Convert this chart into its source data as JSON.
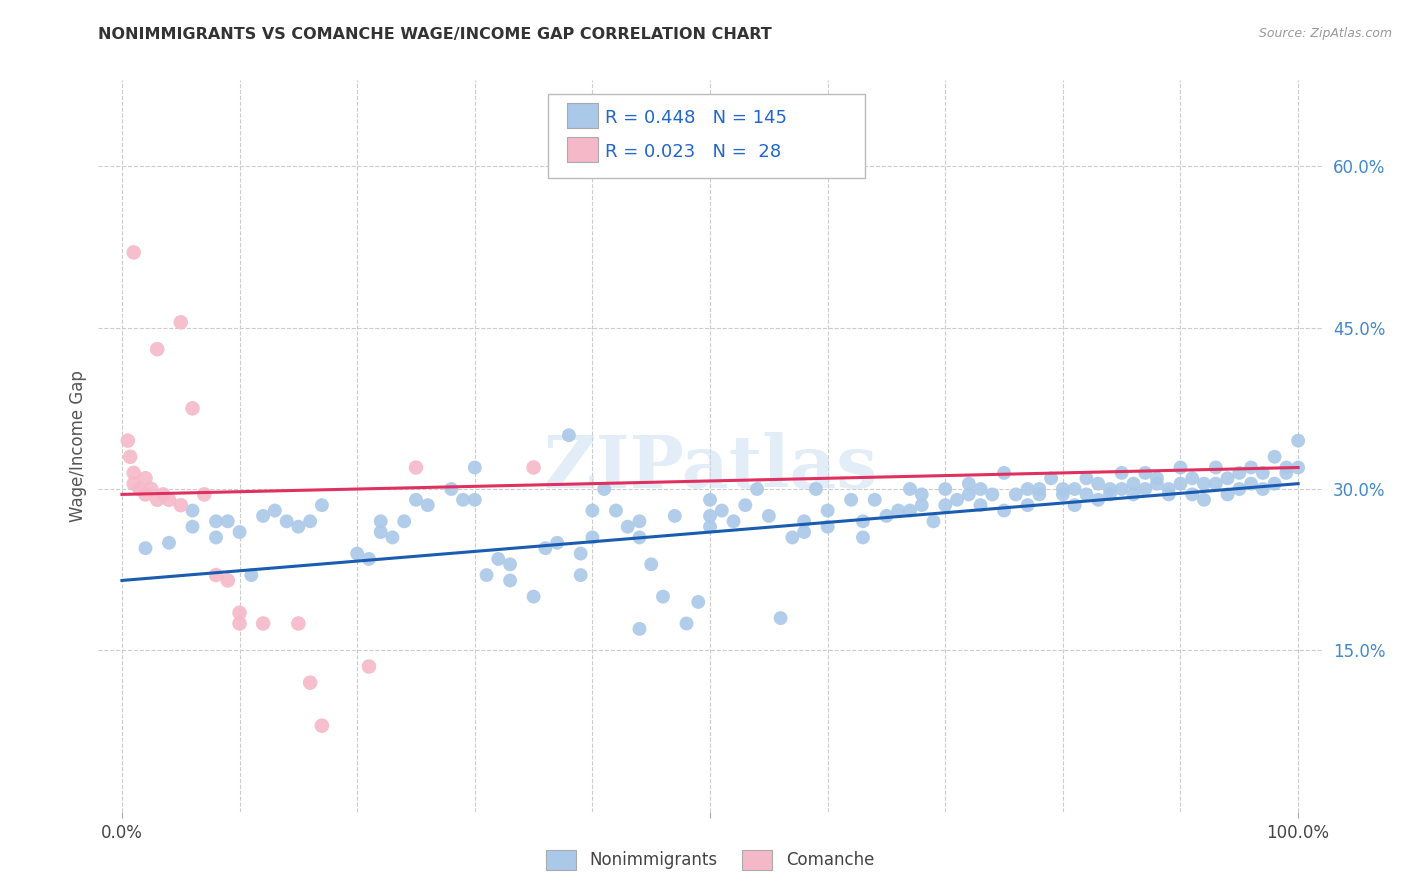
{
  "title": "NONIMMIGRANTS VS COMANCHE WAGE/INCOME GAP CORRELATION CHART",
  "source": "Source: ZipAtlas.com",
  "ylabel": "Wage/Income Gap",
  "xlim": [
    -0.02,
    1.02
  ],
  "ylim": [
    0.0,
    0.68
  ],
  "yticks": [
    0.15,
    0.3,
    0.45,
    0.6
  ],
  "yticklabels": [
    "15.0%",
    "30.0%",
    "45.0%",
    "60.0%"
  ],
  "blue_R": 0.448,
  "blue_N": 145,
  "pink_R": 0.023,
  "pink_N": 28,
  "blue_color": "#aac8e8",
  "pink_color": "#f5b8c8",
  "blue_line_color": "#1a5cb0",
  "pink_line_color": "#e03060",
  "background_color": "#ffffff",
  "grid_color": "#cccccc",
  "watermark": "ZIPatlas",
  "blue_points": [
    [
      0.02,
      0.245
    ],
    [
      0.04,
      0.25
    ],
    [
      0.06,
      0.28
    ],
    [
      0.06,
      0.265
    ],
    [
      0.08,
      0.27
    ],
    [
      0.08,
      0.255
    ],
    [
      0.09,
      0.27
    ],
    [
      0.1,
      0.26
    ],
    [
      0.11,
      0.22
    ],
    [
      0.12,
      0.275
    ],
    [
      0.13,
      0.28
    ],
    [
      0.14,
      0.27
    ],
    [
      0.15,
      0.265
    ],
    [
      0.16,
      0.27
    ],
    [
      0.17,
      0.285
    ],
    [
      0.2,
      0.24
    ],
    [
      0.21,
      0.235
    ],
    [
      0.22,
      0.27
    ],
    [
      0.22,
      0.26
    ],
    [
      0.23,
      0.255
    ],
    [
      0.24,
      0.27
    ],
    [
      0.25,
      0.29
    ],
    [
      0.26,
      0.285
    ],
    [
      0.28,
      0.3
    ],
    [
      0.29,
      0.29
    ],
    [
      0.3,
      0.32
    ],
    [
      0.3,
      0.29
    ],
    [
      0.31,
      0.22
    ],
    [
      0.32,
      0.235
    ],
    [
      0.33,
      0.215
    ],
    [
      0.33,
      0.23
    ],
    [
      0.35,
      0.2
    ],
    [
      0.36,
      0.245
    ],
    [
      0.37,
      0.25
    ],
    [
      0.38,
      0.35
    ],
    [
      0.39,
      0.22
    ],
    [
      0.39,
      0.24
    ],
    [
      0.4,
      0.28
    ],
    [
      0.4,
      0.255
    ],
    [
      0.41,
      0.3
    ],
    [
      0.42,
      0.28
    ],
    [
      0.43,
      0.265
    ],
    [
      0.44,
      0.27
    ],
    [
      0.44,
      0.255
    ],
    [
      0.44,
      0.17
    ],
    [
      0.45,
      0.23
    ],
    [
      0.46,
      0.2
    ],
    [
      0.47,
      0.275
    ],
    [
      0.48,
      0.175
    ],
    [
      0.49,
      0.195
    ],
    [
      0.5,
      0.275
    ],
    [
      0.5,
      0.265
    ],
    [
      0.5,
      0.29
    ],
    [
      0.51,
      0.28
    ],
    [
      0.52,
      0.27
    ],
    [
      0.53,
      0.285
    ],
    [
      0.54,
      0.3
    ],
    [
      0.55,
      0.275
    ],
    [
      0.56,
      0.18
    ],
    [
      0.57,
      0.255
    ],
    [
      0.58,
      0.26
    ],
    [
      0.58,
      0.27
    ],
    [
      0.59,
      0.3
    ],
    [
      0.6,
      0.265
    ],
    [
      0.6,
      0.28
    ],
    [
      0.62,
      0.29
    ],
    [
      0.63,
      0.255
    ],
    [
      0.63,
      0.27
    ],
    [
      0.64,
      0.29
    ],
    [
      0.65,
      0.275
    ],
    [
      0.66,
      0.28
    ],
    [
      0.67,
      0.28
    ],
    [
      0.67,
      0.3
    ],
    [
      0.68,
      0.295
    ],
    [
      0.68,
      0.285
    ],
    [
      0.69,
      0.27
    ],
    [
      0.7,
      0.3
    ],
    [
      0.7,
      0.285
    ],
    [
      0.71,
      0.29
    ],
    [
      0.72,
      0.295
    ],
    [
      0.72,
      0.305
    ],
    [
      0.73,
      0.3
    ],
    [
      0.73,
      0.285
    ],
    [
      0.74,
      0.295
    ],
    [
      0.75,
      0.315
    ],
    [
      0.75,
      0.28
    ],
    [
      0.76,
      0.295
    ],
    [
      0.77,
      0.3
    ],
    [
      0.77,
      0.285
    ],
    [
      0.78,
      0.3
    ],
    [
      0.78,
      0.295
    ],
    [
      0.79,
      0.31
    ],
    [
      0.8,
      0.295
    ],
    [
      0.8,
      0.3
    ],
    [
      0.81,
      0.285
    ],
    [
      0.81,
      0.3
    ],
    [
      0.82,
      0.31
    ],
    [
      0.82,
      0.295
    ],
    [
      0.83,
      0.305
    ],
    [
      0.83,
      0.29
    ],
    [
      0.84,
      0.3
    ],
    [
      0.84,
      0.295
    ],
    [
      0.85,
      0.315
    ],
    [
      0.85,
      0.3
    ],
    [
      0.86,
      0.305
    ],
    [
      0.86,
      0.295
    ],
    [
      0.87,
      0.315
    ],
    [
      0.87,
      0.3
    ],
    [
      0.88,
      0.31
    ],
    [
      0.88,
      0.305
    ],
    [
      0.89,
      0.3
    ],
    [
      0.89,
      0.295
    ],
    [
      0.9,
      0.32
    ],
    [
      0.9,
      0.305
    ],
    [
      0.91,
      0.31
    ],
    [
      0.91,
      0.295
    ],
    [
      0.92,
      0.305
    ],
    [
      0.92,
      0.29
    ],
    [
      0.93,
      0.32
    ],
    [
      0.93,
      0.305
    ],
    [
      0.94,
      0.31
    ],
    [
      0.94,
      0.295
    ],
    [
      0.95,
      0.3
    ],
    [
      0.95,
      0.315
    ],
    [
      0.96,
      0.305
    ],
    [
      0.96,
      0.32
    ],
    [
      0.97,
      0.315
    ],
    [
      0.97,
      0.3
    ],
    [
      0.98,
      0.33
    ],
    [
      0.98,
      0.305
    ],
    [
      0.99,
      0.32
    ],
    [
      0.99,
      0.315
    ],
    [
      1.0,
      0.345
    ],
    [
      1.0,
      0.32
    ]
  ],
  "pink_points": [
    [
      0.01,
      0.52
    ],
    [
      0.03,
      0.43
    ],
    [
      0.05,
      0.455
    ],
    [
      0.005,
      0.345
    ],
    [
      0.007,
      0.33
    ],
    [
      0.01,
      0.315
    ],
    [
      0.01,
      0.305
    ],
    [
      0.015,
      0.3
    ],
    [
      0.02,
      0.31
    ],
    [
      0.02,
      0.295
    ],
    [
      0.025,
      0.3
    ],
    [
      0.03,
      0.29
    ],
    [
      0.035,
      0.295
    ],
    [
      0.04,
      0.29
    ],
    [
      0.05,
      0.285
    ],
    [
      0.06,
      0.375
    ],
    [
      0.07,
      0.295
    ],
    [
      0.08,
      0.22
    ],
    [
      0.09,
      0.215
    ],
    [
      0.1,
      0.175
    ],
    [
      0.1,
      0.185
    ],
    [
      0.12,
      0.175
    ],
    [
      0.15,
      0.175
    ],
    [
      0.16,
      0.12
    ],
    [
      0.17,
      0.08
    ],
    [
      0.21,
      0.135
    ],
    [
      0.25,
      0.32
    ],
    [
      0.35,
      0.32
    ]
  ],
  "blue_intercept": 0.215,
  "blue_slope": 0.09,
  "pink_intercept": 0.295,
  "pink_slope": 0.025
}
